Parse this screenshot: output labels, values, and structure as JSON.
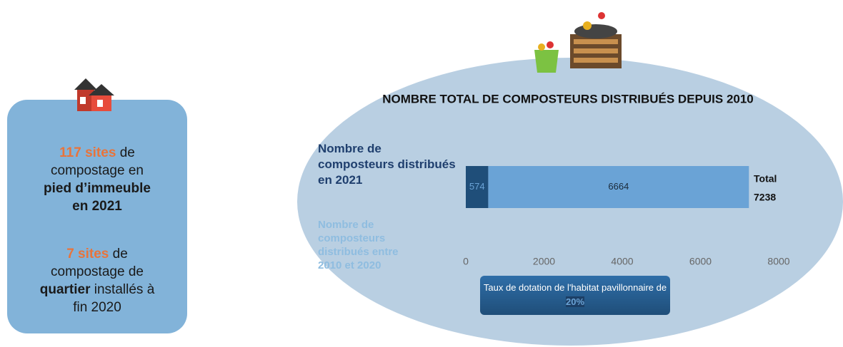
{
  "chart_data": {
    "type": "stacked-barh",
    "title": "NOMBRE TOTAL DE COMPOSTEURS DISTRIBUÉS DEPUIS 2010",
    "categories": [
      null
    ],
    "series": [
      {
        "name": "Nombre de composteurs distribués en 2021",
        "color": "#1f4e79",
        "values": [
          574
        ]
      },
      {
        "name": "Nombre de composteurs distribués entre 2010 et 2020",
        "color": "#6aa3d6",
        "values": [
          6664
        ]
      }
    ],
    "total_label": "Total",
    "total": 7238,
    "xlim": [
      0,
      8000
    ],
    "xticks": [
      0,
      2000,
      4000,
      6000,
      8000
    ]
  },
  "info_box": {
    "highlight_1": "117 sites",
    "text_1": "de compostage en",
    "bold_1": "pied d’immeuble en 2021",
    "highlight_2": "7 sites",
    "text_2": "de compostage de",
    "bold_2": "quartier",
    "text_3": "installés à fin 2020"
  },
  "note": {
    "text": "Taux de dotation de l'habitat pavillonnaire de",
    "highlight": "20%"
  }
}
